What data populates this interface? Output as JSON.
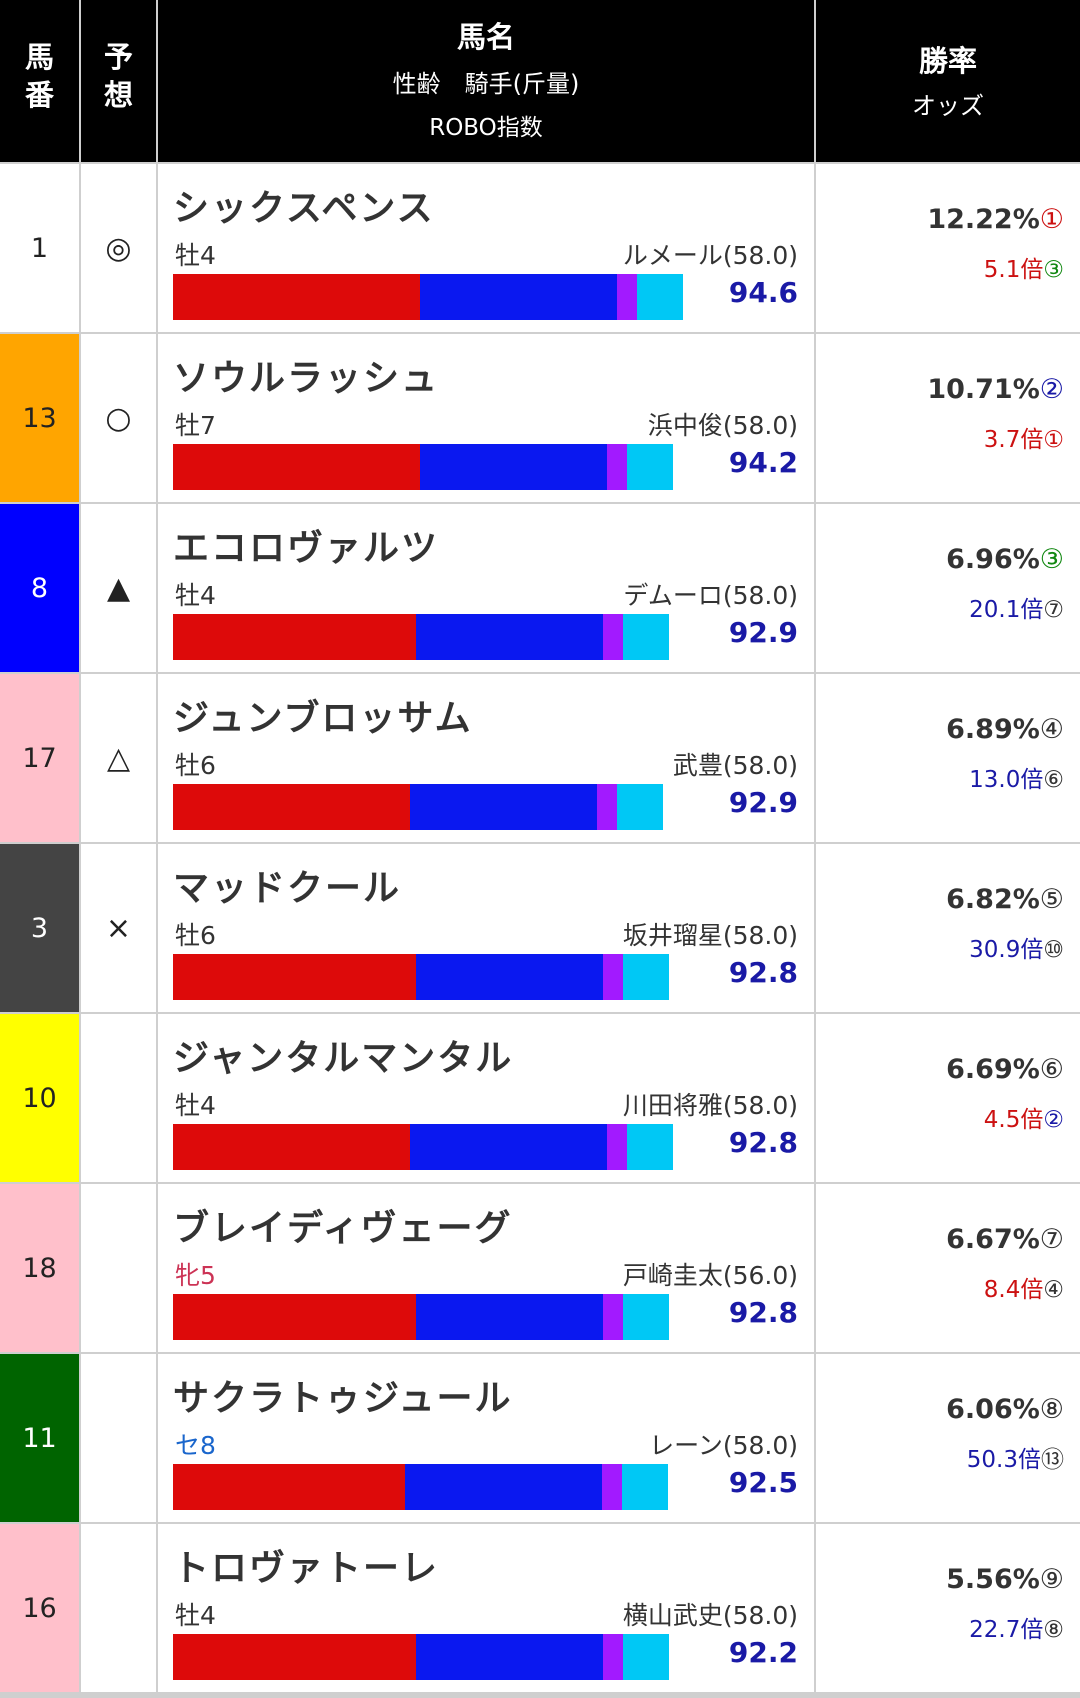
{
  "header": {
    "num_label": "馬\n番",
    "pred_label": "予\n想",
    "name_title": "馬名",
    "name_sub1": "性齢　騎手(斤量)",
    "name_sub2": "ROBO指数",
    "rate_title": "勝率",
    "rate_sub": "オッズ"
  },
  "colors": {
    "bar_red": "#dd0a0a",
    "bar_blue": "#0a18f0",
    "bar_purple": "#a21aff",
    "bar_cyan": "#00c8f5",
    "robo_blue": "#1a1aa6",
    "rank_red": "#cc1111",
    "rank_blue": "#1a1aa6",
    "rank_green": "#118811",
    "odds_red": "#cc1111",
    "odds_blue": "#1a1aa6",
    "mare_pink": "#cc3355",
    "gelding_blue": "#1a66cc"
  },
  "rows": [
    {
      "num": "1",
      "num_bg": "#ffffff",
      "num_fg": "#222222",
      "pred": "◎",
      "name": "シックスペンス",
      "sexage": "牡4",
      "sexage_color": "#333333",
      "jockey": "ルメール(58.0)",
      "robo": "94.6",
      "robo_pct": 0.946,
      "rate": "12.22%",
      "rate_rank": "①",
      "rate_rank_color": "#cc1111",
      "odds": "5.1倍",
      "odds_color": "#cc1111",
      "odds_rank": "③",
      "odds_rank_color": "#118811",
      "segs": [
        0.506,
        0.402,
        0.04,
        0.094
      ]
    },
    {
      "num": "13",
      "num_bg": "#ffa500",
      "num_fg": "#222222",
      "pred": "○",
      "name": "ソウルラッシュ",
      "sexage": "牡7",
      "sexage_color": "#333333",
      "jockey": "浜中俊(58.0)",
      "robo": "94.2",
      "robo_pct": 0.942,
      "rate": "10.71%",
      "rate_rank": "②",
      "rate_rank_color": "#1a1aa6",
      "odds": "3.7倍",
      "odds_color": "#cc1111",
      "odds_rank": "①",
      "odds_rank_color": "#cc1111",
      "segs": [
        0.506,
        0.382,
        0.04,
        0.094
      ]
    },
    {
      "num": "8",
      "num_bg": "#0000ff",
      "num_fg": "#ffffff",
      "pred": "▲",
      "name": "エコロヴァルツ",
      "sexage": "牡4",
      "sexage_color": "#333333",
      "jockey": "デムーロ(58.0)",
      "robo": "92.9",
      "robo_pct": 0.929,
      "rate": "6.96%",
      "rate_rank": "③",
      "rate_rank_color": "#118811",
      "odds": "20.1倍",
      "odds_color": "#1a1aa6",
      "odds_rank": "⑦",
      "odds_rank_color": "#333333",
      "segs": [
        0.496,
        0.382,
        0.04,
        0.094
      ]
    },
    {
      "num": "17",
      "num_bg": "#ffc0cb",
      "num_fg": "#222222",
      "pred": "△",
      "name": "ジュンブロッサム",
      "sexage": "牡6",
      "sexage_color": "#333333",
      "jockey": "武豊(58.0)",
      "robo": "92.9",
      "robo_pct": 0.929,
      "rate": "6.89%",
      "rate_rank": "④",
      "rate_rank_color": "#333333",
      "odds": "13.0倍",
      "odds_color": "#1a1aa6",
      "odds_rank": "⑥",
      "odds_rank_color": "#333333",
      "segs": [
        0.485,
        0.382,
        0.04,
        0.094
      ]
    },
    {
      "num": "3",
      "num_bg": "#444444",
      "num_fg": "#ffffff",
      "pred": "×",
      "name": "マッドクール",
      "sexage": "牡6",
      "sexage_color": "#333333",
      "jockey": "坂井瑠星(58.0)",
      "robo": "92.8",
      "robo_pct": 0.928,
      "rate": "6.82%",
      "rate_rank": "⑤",
      "rate_rank_color": "#333333",
      "odds": "30.9倍",
      "odds_color": "#1a1aa6",
      "odds_rank": "⑩",
      "odds_rank_color": "#333333",
      "segs": [
        0.496,
        0.382,
        0.04,
        0.094
      ]
    },
    {
      "num": "10",
      "num_bg": "#ffff00",
      "num_fg": "#222222",
      "pred": "",
      "name": "ジャンタルマンタル",
      "sexage": "牡4",
      "sexage_color": "#333333",
      "jockey": "川田将雅(58.0)",
      "robo": "92.8",
      "robo_pct": 0.928,
      "rate": "6.69%",
      "rate_rank": "⑥",
      "rate_rank_color": "#333333",
      "odds": "4.5倍",
      "odds_color": "#cc1111",
      "odds_rank": "②",
      "odds_rank_color": "#1a1aa6",
      "segs": [
        0.485,
        0.402,
        0.04,
        0.094
      ]
    },
    {
      "num": "18",
      "num_bg": "#ffc0cb",
      "num_fg": "#222222",
      "pred": "",
      "name": "ブレイディヴェーグ",
      "sexage": "牝5",
      "sexage_color": "#cc3355",
      "jockey": "戸崎圭太(56.0)",
      "robo": "92.8",
      "robo_pct": 0.928,
      "rate": "6.67%",
      "rate_rank": "⑦",
      "rate_rank_color": "#333333",
      "odds": "8.4倍",
      "odds_color": "#cc1111",
      "odds_rank": "④",
      "odds_rank_color": "#333333",
      "segs": [
        0.496,
        0.382,
        0.04,
        0.094
      ]
    },
    {
      "num": "11",
      "num_bg": "#006400",
      "num_fg": "#ffffff",
      "pred": "",
      "name": "サクラトゥジュール",
      "sexage": "セ8",
      "sexage_color": "#1a66cc",
      "jockey": "レーン(58.0)",
      "robo": "92.5",
      "robo_pct": 0.925,
      "rate": "6.06%",
      "rate_rank": "⑧",
      "rate_rank_color": "#333333",
      "odds": "50.3倍",
      "odds_color": "#1a1aa6",
      "odds_rank": "⑬",
      "odds_rank_color": "#333333",
      "segs": [
        0.474,
        0.402,
        0.04,
        0.094
      ]
    },
    {
      "num": "16",
      "num_bg": "#ffc0cb",
      "num_fg": "#222222",
      "pred": "",
      "name": "トロヴァトーレ",
      "sexage": "牡4",
      "sexage_color": "#333333",
      "jockey": "横山武史(58.0)",
      "robo": "92.2",
      "robo_pct": 0.922,
      "rate": "5.56%",
      "rate_rank": "⑨",
      "rate_rank_color": "#333333",
      "odds": "22.7倍",
      "odds_color": "#1a1aa6",
      "odds_rank": "⑧",
      "odds_rank_color": "#333333",
      "segs": [
        0.496,
        0.382,
        0.04,
        0.094
      ]
    }
  ]
}
